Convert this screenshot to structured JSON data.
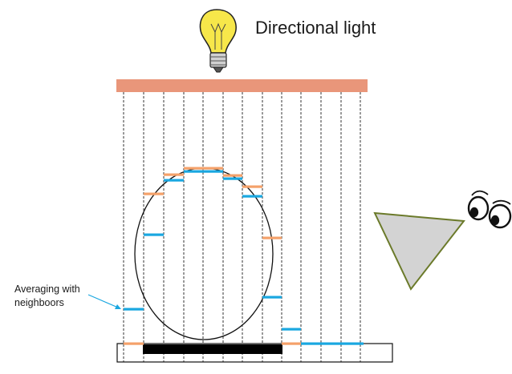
{
  "labels": {
    "light": "Directional light",
    "annotation_line1": "Averaging with",
    "annotation_line2": "neighboors"
  },
  "icons": {
    "light_source": "light-bulb-icon",
    "viewer": "eyes-icon",
    "view_frustum": "view-frustum-icon"
  },
  "colors": {
    "light_bar": "#E9967A",
    "orange_depth": "#F4A16A",
    "blue_depth": "#1AA7E0",
    "occluder_bar": "#000000",
    "frustum_fill": "#D3D3D3",
    "frustum_stroke": "#6B7A2A",
    "annotation_arrow": "#1AA7E0",
    "bulb": "#F7E74A"
  }
}
